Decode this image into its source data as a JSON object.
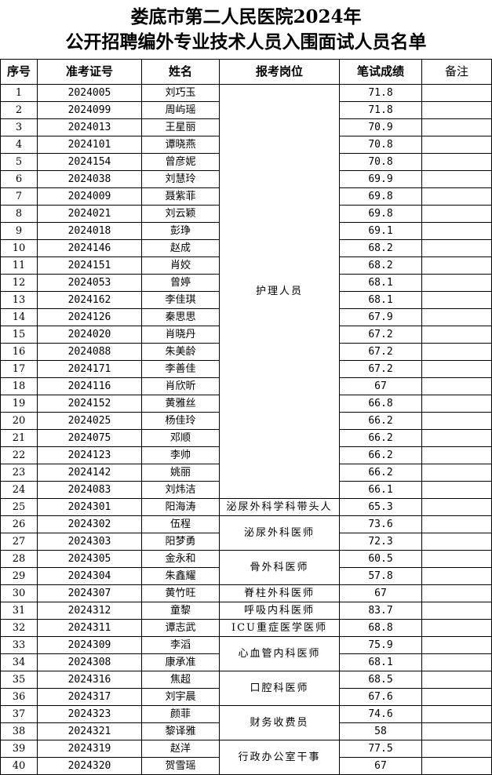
{
  "title": {
    "line1": "娄底市第二人民医院2024年",
    "line2": "公开招聘编外专业技术人员入围面试人员名单"
  },
  "headers": {
    "no": "序号",
    "exam_id": "准考证号",
    "name": "姓名",
    "post": "报考岗位",
    "score": "笔试成绩",
    "remark": "备注"
  },
  "rows": [
    {
      "no": "1",
      "id": "2024005",
      "name": "刘巧玉",
      "score": "71.8"
    },
    {
      "no": "2",
      "id": "2024099",
      "name": "周屿瑶",
      "score": "71.8"
    },
    {
      "no": "3",
      "id": "2024013",
      "name": "王星丽",
      "score": "70.9"
    },
    {
      "no": "4",
      "id": "2024101",
      "name": "谭晓燕",
      "score": "70.8"
    },
    {
      "no": "5",
      "id": "2024154",
      "name": "曾彦妮",
      "score": "70.8"
    },
    {
      "no": "6",
      "id": "2024038",
      "name": "刘慧玲",
      "score": "69.9"
    },
    {
      "no": "7",
      "id": "2024009",
      "name": "聂紫菲",
      "score": "69.8"
    },
    {
      "no": "8",
      "id": "2024021",
      "name": "刘云颖",
      "score": "69.8"
    },
    {
      "no": "9",
      "id": "2024018",
      "name": "彭琤",
      "score": "69.1"
    },
    {
      "no": "10",
      "id": "2024146",
      "name": "赵成",
      "score": "68.2"
    },
    {
      "no": "11",
      "id": "2024151",
      "name": "肖姣",
      "score": "68.2"
    },
    {
      "no": "12",
      "id": "2024053",
      "name": "曾婷",
      "score": "68.1"
    },
    {
      "no": "13",
      "id": "2024162",
      "name": "李佳琪",
      "score": "68.1"
    },
    {
      "no": "14",
      "id": "2024126",
      "name": "秦思思",
      "score": "67.9"
    },
    {
      "no": "15",
      "id": "2024020",
      "name": "肖晓丹",
      "score": "67.2"
    },
    {
      "no": "16",
      "id": "2024088",
      "name": "朱美龄",
      "score": "67.2"
    },
    {
      "no": "17",
      "id": "2024171",
      "name": "李善佳",
      "score": "67.2"
    },
    {
      "no": "18",
      "id": "2024116",
      "name": "肖欣昕",
      "score": "67"
    },
    {
      "no": "19",
      "id": "2024152",
      "name": "黄雅丝",
      "score": "66.8"
    },
    {
      "no": "20",
      "id": "2024025",
      "name": "杨佳玲",
      "score": "66.2"
    },
    {
      "no": "21",
      "id": "2024075",
      "name": "邓顺",
      "score": "66.2"
    },
    {
      "no": "22",
      "id": "2024123",
      "name": "李帅",
      "score": "66.2"
    },
    {
      "no": "23",
      "id": "2024142",
      "name": "姚丽",
      "score": "66.2"
    },
    {
      "no": "24",
      "id": "2024083",
      "name": "刘炜洁",
      "score": "66.1"
    },
    {
      "no": "25",
      "id": "2024301",
      "name": "阳海涛",
      "score": "65.3"
    },
    {
      "no": "26",
      "id": "2024302",
      "name": "伍程",
      "score": "73.6"
    },
    {
      "no": "27",
      "id": "2024303",
      "name": "阳梦勇",
      "score": "72.3"
    },
    {
      "no": "28",
      "id": "2024305",
      "name": "金永和",
      "score": "60.5"
    },
    {
      "no": "29",
      "id": "2024304",
      "name": "朱鑫耀",
      "score": "57.8"
    },
    {
      "no": "30",
      "id": "2024307",
      "name": "黄竹旺",
      "score": "67"
    },
    {
      "no": "31",
      "id": "2024312",
      "name": "童黎",
      "score": "83.7"
    },
    {
      "no": "32",
      "id": "2024311",
      "name": "谭志武",
      "score": "68.8"
    },
    {
      "no": "33",
      "id": "2024309",
      "name": "李滔",
      "score": "75.9"
    },
    {
      "no": "34",
      "id": "2024308",
      "name": "康承准",
      "score": "68.1"
    },
    {
      "no": "35",
      "id": "2024316",
      "name": "焦超",
      "score": "68.5"
    },
    {
      "no": "36",
      "id": "2024317",
      "name": "刘宇晨",
      "score": "67.6"
    },
    {
      "no": "37",
      "id": "2024323",
      "name": "颜菲",
      "score": "74.6"
    },
    {
      "no": "38",
      "id": "2024321",
      "name": "黎译雅",
      "score": "58"
    },
    {
      "no": "39",
      "id": "2024319",
      "name": "赵洋",
      "score": "77.5"
    },
    {
      "no": "40",
      "id": "2024320",
      "name": "贺雪瑶",
      "score": "67"
    }
  ],
  "posts": [
    {
      "label": "护理人员",
      "start": 0,
      "span": 24
    },
    {
      "label": "泌尿外科学科带头人",
      "start": 24,
      "span": 1
    },
    {
      "label": "泌尿外科医师",
      "start": 25,
      "span": 2
    },
    {
      "label": "骨外科医师",
      "start": 27,
      "span": 2
    },
    {
      "label": "脊柱外科医师",
      "start": 29,
      "span": 1
    },
    {
      "label": "呼吸内科医师",
      "start": 30,
      "span": 1
    },
    {
      "label": "ICU重症医学医师",
      "start": 31,
      "span": 1
    },
    {
      "label": "心血管内科医师",
      "start": 32,
      "span": 2
    },
    {
      "label": "口腔科医师",
      "start": 34,
      "span": 2
    },
    {
      "label": "财务收费员",
      "start": 36,
      "span": 2
    },
    {
      "label": "行政办公室干事",
      "start": 38,
      "span": 2
    }
  ]
}
